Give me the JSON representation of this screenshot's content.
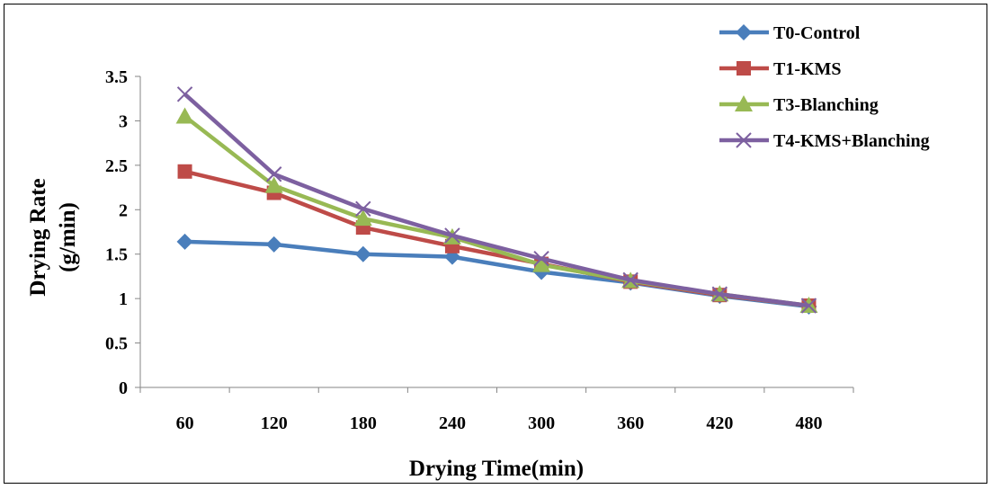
{
  "chart_data": {
    "type": "line",
    "title": "",
    "xlabel": "Drying Time(min)",
    "ylabel_line1": "Drying Rate",
    "ylabel_line2": "(g/min)",
    "categories": [
      "60",
      "120",
      "180",
      "240",
      "300",
      "360",
      "420",
      "480"
    ],
    "ylim": [
      0,
      3.5
    ],
    "yticks": [
      "0",
      "0.5",
      "1",
      "1.5",
      "2",
      "2.5",
      "3",
      "3.5"
    ],
    "grid": false,
    "legend_position": "top-right",
    "series": [
      {
        "name": "T0-Control",
        "color": "#4a7ebb",
        "marker": "diamond",
        "values": [
          1.64,
          1.61,
          1.5,
          1.47,
          1.3,
          1.18,
          1.03,
          0.91
        ]
      },
      {
        "name": "T1-KMS",
        "color": "#be4b48",
        "marker": "square",
        "values": [
          2.43,
          2.19,
          1.8,
          1.59,
          1.39,
          1.19,
          1.04,
          0.92
        ]
      },
      {
        "name": "T3-Blanching",
        "color": "#98b954",
        "marker": "triangle",
        "values": [
          3.05,
          2.27,
          1.9,
          1.69,
          1.38,
          1.2,
          1.05,
          0.92
        ]
      },
      {
        "name": "T4-KMS+Blanching",
        "color": "#7d60a0",
        "marker": "x",
        "values": [
          3.3,
          2.4,
          2.01,
          1.71,
          1.45,
          1.21,
          1.05,
          0.92
        ]
      }
    ]
  }
}
